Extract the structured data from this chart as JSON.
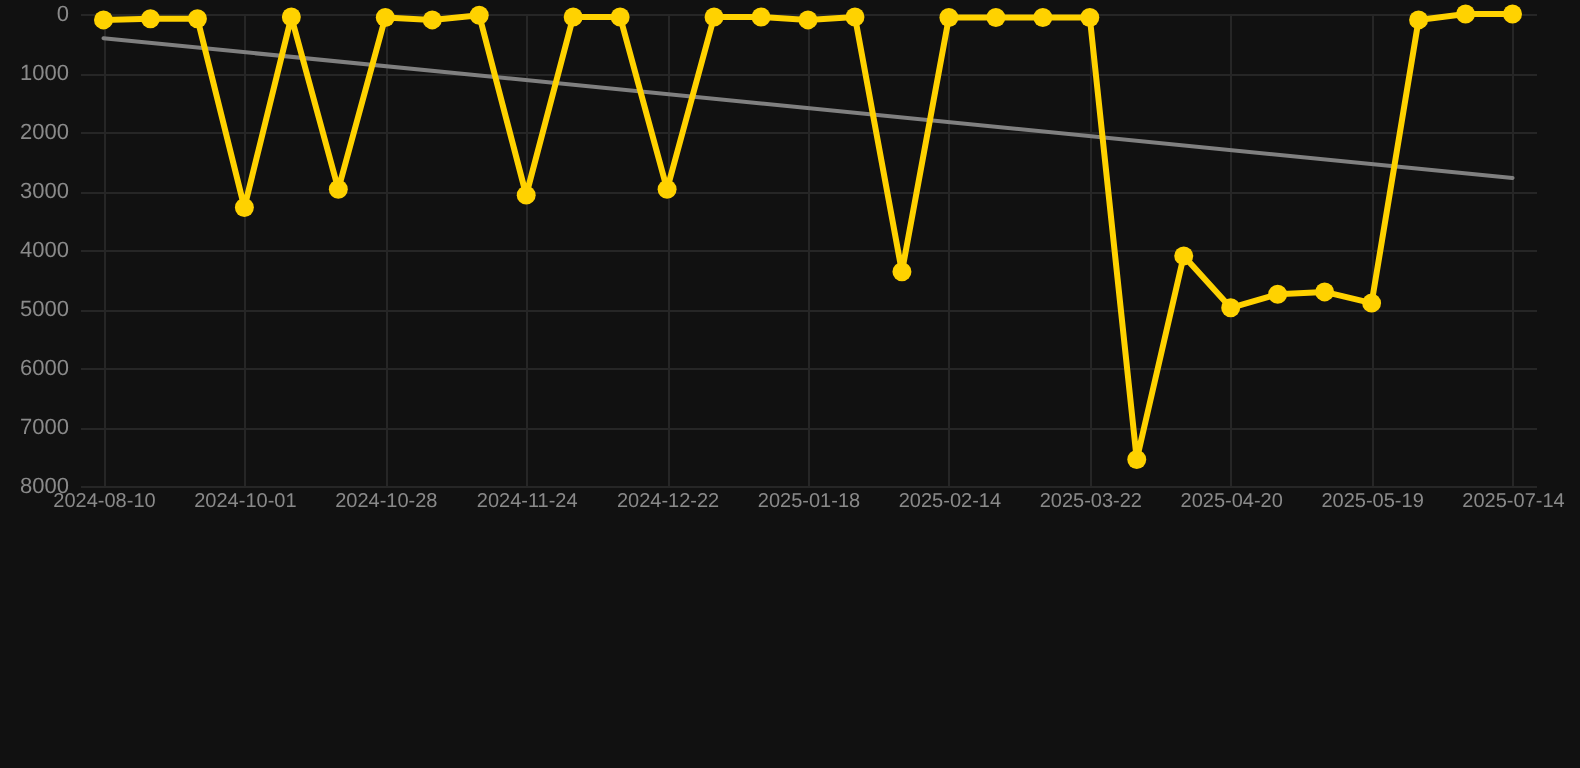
{
  "chart_data": {
    "type": "line",
    "categories": [
      "2024-08-10",
      null,
      null,
      "2024-10-01",
      null,
      null,
      "2024-10-28",
      null,
      null,
      "2024-11-24",
      null,
      null,
      "2024-12-22",
      null,
      null,
      "2025-01-18",
      null,
      null,
      "2025-02-14",
      null,
      null,
      "2025-03-22",
      null,
      null,
      "2025-04-20",
      null,
      null,
      "2025-05-19",
      null,
      null,
      "2025-07-14"
    ],
    "series": [
      {
        "type": "line",
        "color": "#808080",
        "marker": "none",
        "values": [
          410,
          null,
          null,
          null,
          null,
          null,
          null,
          null,
          null,
          null,
          null,
          null,
          null,
          null,
          null,
          null,
          null,
          null,
          null,
          null,
          null,
          null,
          null,
          null,
          null,
          null,
          null,
          null,
          null,
          null,
          2780
        ]
      },
      {
        "color": "#ffd200",
        "values": [
          100,
          80,
          80,
          3280,
          50,
          2970,
          60,
          100,
          20,
          3070,
          50,
          50,
          2970,
          50,
          50,
          100,
          50,
          4370,
          60,
          60,
          60,
          60,
          7550,
          4100,
          4980,
          4750,
          4710,
          4900,
          100,
          0,
          0
        ]
      }
    ],
    "ylim": [
      8000,
      0
    ],
    "yticks": [
      0,
      1000,
      2000,
      3000,
      4000,
      5000,
      6000,
      7000,
      8000
    ],
    "grid": true,
    "marker": "circle",
    "line_style": "solid"
  }
}
